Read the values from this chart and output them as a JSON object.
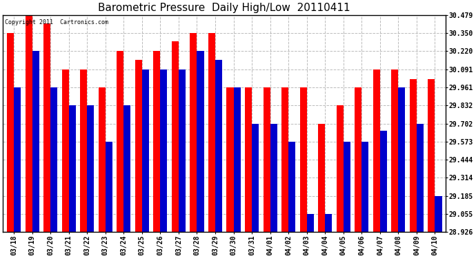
{
  "title": "Barometric Pressure  Daily High/Low  20110411",
  "copyright": "Copyright 2011  Cartronics.com",
  "yticks": [
    28.926,
    29.055,
    29.185,
    29.314,
    29.444,
    29.573,
    29.702,
    29.832,
    29.961,
    30.091,
    30.22,
    30.35,
    30.479
  ],
  "dates": [
    "03/18",
    "03/19",
    "03/20",
    "03/21",
    "03/22",
    "03/23",
    "03/24",
    "03/25",
    "03/26",
    "03/27",
    "03/28",
    "03/29",
    "03/30",
    "03/31",
    "04/01",
    "04/02",
    "04/03",
    "04/04",
    "04/05",
    "04/06",
    "04/07",
    "04/08",
    "04/09",
    "04/10"
  ],
  "highs": [
    30.35,
    30.479,
    30.42,
    30.091,
    30.091,
    29.961,
    30.22,
    30.16,
    30.22,
    30.29,
    30.35,
    30.35,
    29.961,
    29.961,
    29.961,
    29.961,
    29.961,
    29.702,
    29.832,
    29.961,
    30.091,
    30.091,
    30.02,
    30.02
  ],
  "lows": [
    29.961,
    30.22,
    29.961,
    29.832,
    29.832,
    29.573,
    29.832,
    30.091,
    30.091,
    30.091,
    30.22,
    30.16,
    29.961,
    29.702,
    29.702,
    29.573,
    29.055,
    29.055,
    29.573,
    29.573,
    29.65,
    29.961,
    29.702,
    29.185
  ],
  "bar_width": 0.38,
  "high_color": "#ff0000",
  "low_color": "#0000cc",
  "bg_color": "#ffffff",
  "grid_color": "#aaaaaa",
  "title_fontsize": 11,
  "tick_fontsize": 7,
  "copyright_fontsize": 6,
  "ymin": 28.926,
  "ymax": 30.479
}
